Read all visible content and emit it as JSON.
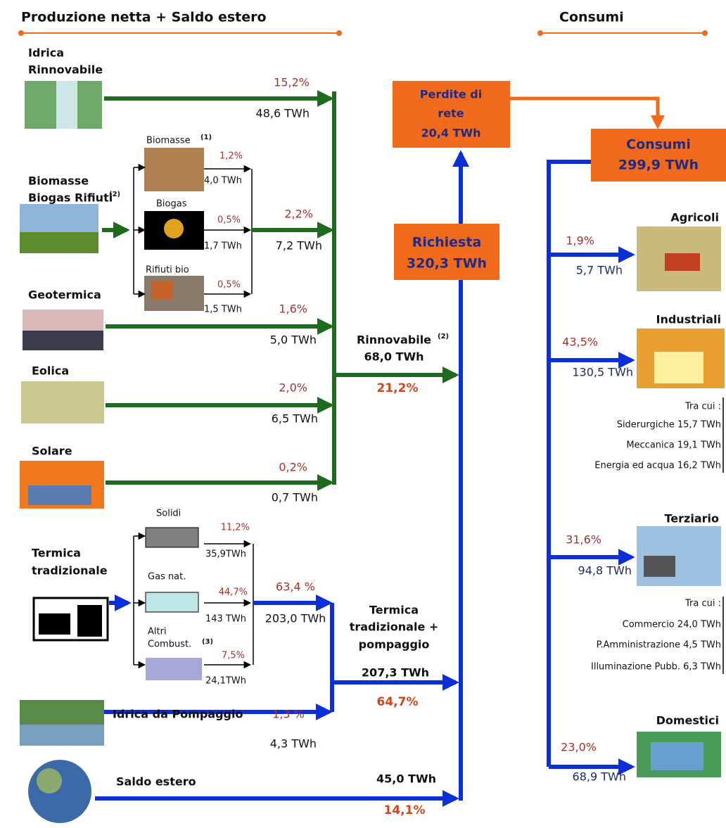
{
  "header": {
    "production": "Produzione netta + Saldo estero",
    "consumption": "Consumi"
  },
  "renewable_sources": [
    {
      "label": [
        "Idrica",
        "Rinnovabile"
      ],
      "share": "15,2%",
      "energy": "48,6 TWh"
    },
    {
      "label": [
        "Biomasse",
        "Biogas Rifiuti"
      ],
      "note": "(2)",
      "share": "2,2%",
      "energy": "7,2 TWh",
      "parts": [
        {
          "label": "Biomasse",
          "note": "(1)",
          "share": "1,2%",
          "energy": "4,0 TWh"
        },
        {
          "label": "Biogas",
          "share": "0,5%",
          "energy": "1,7 TWh"
        },
        {
          "label": "Rifiuti bio",
          "share": "0,5%",
          "energy": "1,5 TWh"
        }
      ]
    },
    {
      "label": [
        "Geotermica"
      ],
      "share": "1,6%",
      "energy": "5,0 TWh"
    },
    {
      "label": [
        "Eolica"
      ],
      "share": "2,0%",
      "energy": "6,5 TWh"
    },
    {
      "label": [
        "Solare"
      ],
      "share": "0,2%",
      "energy": "0,7 TWh"
    }
  ],
  "renewable_total": {
    "label": "Rinnovabile",
    "note": "(2)",
    "energy": "68,0 TWh",
    "share": "21,2%"
  },
  "thermal": {
    "label": [
      "Termica",
      "tradizionale"
    ],
    "share": "63,4 %",
    "energy": "203,0 TWh",
    "parts": [
      {
        "label": [
          "Solidi"
        ],
        "share": "11,2%",
        "energy": "35,9TWh"
      },
      {
        "label": [
          "Gas nat."
        ],
        "share": "44,7%",
        "energy": "143 TWh"
      },
      {
        "label": [
          "Altri",
          "Combust."
        ],
        "note": "(3)",
        "share": "7,5%",
        "energy": "24,1TWh"
      }
    ]
  },
  "pumped_hydro": {
    "label": "Idrica da Pompaggio",
    "share": "1,3 %",
    "energy": "4,3 TWh"
  },
  "thermal_total": {
    "label": [
      "Termica",
      "tradizionale +",
      "pompaggio"
    ],
    "energy": "207,3 TWh",
    "share": "64,7%"
  },
  "net_import": {
    "label": "Saldo estero",
    "energy": "45,0 TWh",
    "share": "14,1%"
  },
  "demand": {
    "label": "Richiesta",
    "energy": "320,3 TWh"
  },
  "grid_losses": {
    "label": [
      "Perdite di",
      "rete"
    ],
    "energy": "20,4 TWh"
  },
  "consumption": {
    "label": "Consumi",
    "energy": "299,9 TWh"
  },
  "sectors": [
    {
      "label": "Agricoli",
      "share": "1,9%",
      "energy": "5,7 TWh"
    },
    {
      "label": "Industriali",
      "share": "43,5%",
      "energy": "130,5 TWh",
      "breakdown_title": "Tra cui :",
      "breakdown": [
        "Siderurgiche 15,7 TWh",
        "Meccanica 19,1 TWh",
        "Energia ed acqua 16,2 TWh"
      ]
    },
    {
      "label": "Terziario",
      "share": "31,6%",
      "energy": "94,8 TWh",
      "breakdown_title": "Tra cui :",
      "breakdown": [
        "Commercio 24,0 TWh",
        "P.Amministrazione 4,5 TWh",
        "Illuminazione Pubb. 6,3 TWh"
      ]
    },
    {
      "label": "Domestici",
      "share": "23,0%",
      "energy": "68,9 TWh"
    }
  ]
}
